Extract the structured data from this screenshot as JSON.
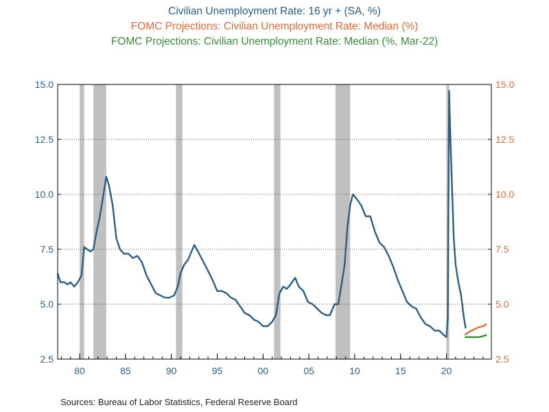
{
  "titles": [
    {
      "text": "Civilian Unemployment Rate: 16 yr + (SA, %)",
      "color": "#2a5d86"
    },
    {
      "text": "FOMC Projections: Civilian Unemployment Rate: Median (%)",
      "color": "#e06a3a"
    },
    {
      "text": "FOMC Projections: Civilian Unemployment Rate: Median (%, Mar-22)",
      "color": "#3a8a3a"
    }
  ],
  "sources": "Sources:  Bureau of Labor Statistics, Federal Reserve Board",
  "chart_data": {
    "type": "line",
    "xlim": [
      1977.6,
      2024.9
    ],
    "ylim": [
      2.5,
      15.0
    ],
    "grid": true,
    "y_ticks": [
      2.5,
      5.0,
      7.5,
      10.0,
      12.5,
      15.0
    ],
    "y_tick_labels": [
      "2.5",
      "5.0",
      "7.5",
      "10.0",
      "12.5",
      "15.0"
    ],
    "y_tick_color_left": "#2a5d86",
    "y_tick_color_right": "#e06a3a",
    "x_ticks": [
      1980,
      1985,
      1990,
      1995,
      2000,
      2005,
      2010,
      2015,
      2020
    ],
    "x_tick_labels": [
      "80",
      "85",
      "90",
      "95",
      "00",
      "05",
      "10",
      "15",
      "20"
    ],
    "recessions": [
      [
        1980.0,
        1980.5
      ],
      [
        1981.5,
        1982.9
      ],
      [
        1990.5,
        1991.2
      ],
      [
        2001.2,
        2001.9
      ],
      [
        2007.9,
        2009.5
      ],
      [
        2020.0,
        2020.3
      ]
    ],
    "recession_color": "#c0c0c0",
    "series": [
      {
        "color": "#2a5d86",
        "x": [
          1977.6,
          1977.9,
          1978.3,
          1978.7,
          1979.0,
          1979.4,
          1979.8,
          1980.2,
          1980.5,
          1980.8,
          1981.2,
          1981.5,
          1981.8,
          1982.2,
          1982.6,
          1982.9,
          1983.2,
          1983.6,
          1984.0,
          1984.4,
          1984.8,
          1985.3,
          1985.8,
          1986.3,
          1986.8,
          1987.3,
          1987.8,
          1988.3,
          1988.8,
          1989.3,
          1989.8,
          1990.3,
          1990.7,
          1991.0,
          1991.4,
          1991.8,
          1992.2,
          1992.5,
          1992.9,
          1993.4,
          1993.9,
          1994.5,
          1995.0,
          1995.5,
          1996.0,
          1996.5,
          1997.0,
          1997.5,
          1998.0,
          1998.5,
          1999.0,
          1999.5,
          2000.0,
          2000.5,
          2001.0,
          2001.4,
          2001.8,
          2002.2,
          2002.6,
          2003.0,
          2003.5,
          2003.9,
          2004.4,
          2004.9,
          2005.4,
          2005.9,
          2006.4,
          2006.9,
          2007.3,
          2007.8,
          2008.2,
          2008.6,
          2008.9,
          2009.2,
          2009.5,
          2009.8,
          2010.2,
          2010.7,
          2011.2,
          2011.7,
          2012.2,
          2012.7,
          2013.2,
          2013.7,
          2014.2,
          2014.7,
          2015.2,
          2015.7,
          2016.2,
          2016.7,
          2017.2,
          2017.7,
          2018.2,
          2018.7,
          2019.2,
          2019.7,
          2020.0,
          2020.15,
          2020.3,
          2020.4,
          2020.6,
          2020.8,
          2021.0,
          2021.3,
          2021.6,
          2021.9,
          2022.1
        ],
        "y": [
          6.4,
          6.0,
          6.0,
          5.9,
          6.0,
          5.8,
          6.0,
          6.3,
          7.6,
          7.5,
          7.4,
          7.5,
          8.2,
          9.0,
          10.0,
          10.8,
          10.4,
          9.5,
          8.0,
          7.5,
          7.3,
          7.3,
          7.1,
          7.2,
          6.9,
          6.3,
          5.9,
          5.5,
          5.4,
          5.3,
          5.3,
          5.4,
          5.8,
          6.4,
          6.8,
          7.0,
          7.4,
          7.7,
          7.4,
          7.0,
          6.6,
          6.1,
          5.6,
          5.6,
          5.5,
          5.3,
          5.2,
          4.9,
          4.6,
          4.5,
          4.3,
          4.2,
          4.0,
          4.0,
          4.2,
          4.5,
          5.5,
          5.8,
          5.7,
          5.9,
          6.2,
          5.8,
          5.6,
          5.1,
          5.0,
          4.8,
          4.6,
          4.5,
          4.5,
          5.0,
          5.0,
          6.0,
          6.8,
          8.5,
          9.5,
          10.0,
          9.8,
          9.5,
          9.0,
          9.0,
          8.3,
          7.8,
          7.6,
          7.2,
          6.7,
          6.1,
          5.6,
          5.1,
          4.9,
          4.8,
          4.4,
          4.1,
          4.0,
          3.8,
          3.8,
          3.6,
          3.5,
          4.4,
          14.7,
          13.0,
          10.5,
          8.0,
          6.8,
          6.0,
          5.4,
          4.4,
          3.9
        ]
      },
      {
        "color": "#e06a3a",
        "x": [
          2022.0,
          2022.5,
          2023.0,
          2023.5,
          2024.0,
          2024.4
        ],
        "y": [
          3.6,
          3.75,
          3.85,
          3.95,
          4.0,
          4.1
        ]
      },
      {
        "color": "#3a8a3a",
        "x": [
          2022.0,
          2022.5,
          2023.0,
          2023.5,
          2024.0,
          2024.4
        ],
        "y": [
          3.5,
          3.5,
          3.5,
          3.5,
          3.55,
          3.6
        ]
      }
    ]
  }
}
